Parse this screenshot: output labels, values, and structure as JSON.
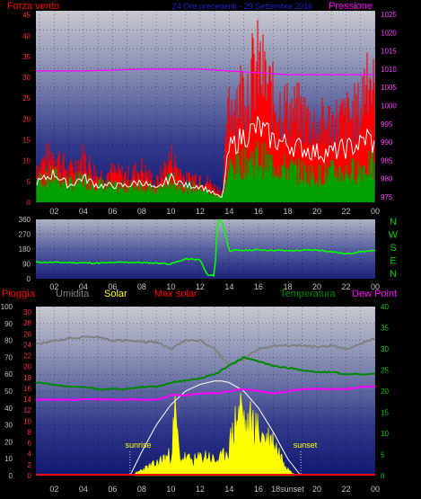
{
  "top_chart": {
    "title": "24 Ore precedenti - 29 Settembre 2016",
    "left_label": "Forza vento",
    "right_label": "Pressione",
    "y_left_ticks": [
      "0",
      "5",
      "10",
      "15",
      "20",
      "25",
      "30",
      "35",
      "40",
      "45"
    ],
    "y_right_ticks": [
      "975",
      "980",
      "985",
      "990",
      "995",
      "1000",
      "1005",
      "1010",
      "1015",
      "1020",
      "1025"
    ],
    "x_ticks": [
      "02",
      "04",
      "06",
      "08",
      "10",
      "12",
      "14",
      "16",
      "18",
      "20",
      "22",
      "00"
    ],
    "colors": {
      "gust": "#ff0000",
      "speed": "#00a000",
      "avg": "#ffffff",
      "pressure": "#ff00ff",
      "left_label": "#ff0000",
      "right_label": "#ff00ff",
      "title": "#2222cc"
    }
  },
  "wind_chart": {
    "y_ticks": [
      "0",
      "90",
      "180",
      "270",
      "360"
    ],
    "x_ticks": [
      "02",
      "04",
      "06",
      "08",
      "10",
      "12",
      "14",
      "16",
      "18",
      "20",
      "22",
      "00"
    ],
    "compass": [
      "N",
      "W",
      "S",
      "E",
      "N"
    ],
    "colors": {
      "direction": "#00ff00",
      "compass": "#00cc00"
    }
  },
  "bottom_chart": {
    "labels": {
      "pioggia": "Pioggia",
      "umidita": "Umidita",
      "solar": "Solar",
      "max_solar": "Max solar",
      "temperatura": "Temperatura",
      "dew_point": "Dew Point"
    },
    "y_hum_ticks": [
      "0",
      "10",
      "20",
      "30",
      "40",
      "50",
      "60",
      "70",
      "80",
      "90",
      "100"
    ],
    "y_rain_ticks": [
      "0",
      "2",
      "4",
      "6",
      "8",
      "10",
      "12",
      "14",
      "16",
      "18",
      "20",
      "22",
      "24",
      "26",
      "28",
      "30"
    ],
    "y_temp_ticks": [
      "0",
      "5",
      "10",
      "15",
      "20",
      "25",
      "30",
      "35",
      "40"
    ],
    "x_ticks": [
      "02",
      "04",
      "06",
      "08",
      "10",
      "12",
      "14",
      "16",
      "18",
      "20",
      "22",
      "00"
    ],
    "annotations": {
      "sunrise": "sunrise",
      "sunset": "sunset",
      "sunset_tick": "18sunset"
    },
    "colors": {
      "rain": "#ff0000",
      "humidity": "#808080",
      "solar": "#ffff00",
      "max_solar": "#ffffff",
      "temperature": "#008800",
      "dew_point": "#ff00ff"
    }
  },
  "chart_data": [
    {
      "type": "line",
      "title": "24 Ore precedenti - 29 Settembre 2016",
      "x_unit": "hour",
      "xlim": [
        0.75,
        24.0
      ],
      "ylabel": "Forza vento",
      "ylim": [
        0,
        46
      ],
      "y2label": "Pressione",
      "y2lim": [
        973.5,
        1026
      ],
      "series": [
        {
          "name": "Forza vento",
          "x": [
            1,
            2,
            3,
            4,
            5,
            6,
            7,
            8,
            9,
            10,
            11,
            12,
            13,
            13.5,
            14,
            15,
            16,
            17,
            18,
            19,
            20,
            21,
            22,
            23,
            23.5,
            24
          ],
          "values": [
            10,
            13,
            8,
            12,
            7,
            8,
            7,
            9,
            5,
            12,
            6,
            7,
            4,
            3,
            25,
            30,
            36,
            27,
            24,
            23,
            20,
            21,
            22,
            24,
            38,
            26
          ]
        },
        {
          "x": [
            1,
            2,
            3,
            4,
            5,
            6,
            7,
            8,
            9,
            10,
            11,
            12,
            13,
            13.5,
            14,
            15,
            16,
            17,
            18,
            19,
            20,
            21,
            22,
            23,
            23.5,
            24
          ],
          "values": [
            6,
            7,
            5,
            6,
            5,
            4,
            4,
            5,
            3,
            6,
            4,
            4,
            2,
            2,
            9,
            11,
            12,
            10,
            9,
            8,
            7,
            8,
            8,
            9,
            10,
            9
          ]
        },
        {
          "x": [
            1,
            2,
            3,
            4,
            5,
            6,
            7,
            8,
            9,
            10,
            11,
            12,
            13,
            13.5,
            14,
            15,
            16,
            17,
            18,
            19,
            20,
            21,
            22,
            23,
            23.5,
            24
          ],
          "values": [
            5,
            7,
            4,
            6,
            4,
            4,
            4,
            5,
            3,
            6,
            4,
            4,
            2,
            1,
            13,
            16,
            18,
            15,
            14,
            13,
            12,
            12,
            13,
            14,
            16,
            13
          ]
        },
        {
          "name": "Pressione",
          "x": [
            1,
            4,
            8,
            10,
            12,
            14,
            16,
            18,
            20,
            22,
            24
          ],
          "values": [
            1009.5,
            1009.5,
            1010,
            1010,
            1010,
            1009.5,
            1009,
            1008.5,
            1008.5,
            1008.5,
            1008.5
          ]
        }
      ]
    },
    {
      "type": "line",
      "x_unit": "hour",
      "xlim": [
        0.75,
        24.0
      ],
      "ylim": [
        0,
        360
      ],
      "series": [
        {
          "x": [
            1,
            3,
            5,
            7,
            9,
            10,
            11,
            12,
            12.5,
            13,
            13.2,
            13.5,
            14,
            16,
            18,
            20,
            21,
            22,
            23,
            24
          ],
          "values": [
            100,
            98,
            95,
            100,
            95,
            90,
            120,
            115,
            20,
            20,
            355,
            355,
            170,
            175,
            170,
            175,
            165,
            150,
            165,
            170
          ]
        }
      ]
    },
    {
      "type": "line",
      "x_unit": "hour",
      "xlim": [
        0.75,
        24.0
      ],
      "y_left_label": "Umidita",
      "y_left_lim": [
        0,
        100
      ],
      "y_rain_label": "Pioggia",
      "y_rain_lim": [
        0,
        30
      ],
      "y_right_label": "Temperatura",
      "y_right_lim": [
        0,
        40
      ],
      "annotations": {
        "sunrise_hour": 7.2,
        "sunset_hour": 18.9
      },
      "series": [
        {
          "name": "Umidita",
          "x": [
            1,
            2,
            3,
            4,
            5,
            6,
            7,
            8,
            9,
            10,
            11,
            12,
            13,
            14,
            15,
            16,
            17,
            18,
            19,
            20,
            21,
            22,
            23,
            24
          ],
          "values": [
            78,
            80,
            81,
            82,
            82,
            80,
            80,
            79,
            79,
            75,
            80,
            80,
            75,
            65,
            69,
            75,
            77,
            77,
            77,
            76,
            77,
            75,
            78,
            81
          ]
        },
        {
          "name": "Temperatura",
          "x": [
            1,
            2,
            3,
            4,
            5,
            6,
            7,
            8,
            9,
            10,
            11,
            12,
            13,
            14,
            15,
            16,
            17,
            18,
            19,
            20,
            21,
            22,
            23,
            24
          ],
          "values": [
            22,
            21.5,
            21,
            21,
            20.5,
            20.5,
            20.5,
            21,
            21,
            22,
            22.5,
            23,
            24,
            26,
            28,
            27,
            26,
            25.5,
            25,
            24.5,
            24.5,
            24,
            24,
            24
          ]
        },
        {
          "name": "Dew Point",
          "x": [
            1,
            2,
            3,
            4,
            5,
            6,
            7,
            8,
            9,
            10,
            11,
            12,
            13,
            14,
            15,
            16,
            17,
            18,
            19,
            20,
            21,
            22,
            23,
            24
          ],
          "values": [
            18,
            18,
            18,
            18,
            18,
            18,
            18,
            18,
            18,
            19,
            19,
            19.5,
            19.5,
            20,
            20.5,
            20,
            19.5,
            20,
            20.5,
            20.5,
            20.5,
            20.5,
            21,
            21
          ]
        },
        {
          "name": "Max solar",
          "x": [
            7.2,
            8,
            9,
            10,
            11,
            12,
            13,
            13.5,
            14,
            15,
            16,
            17,
            18,
            18.9
          ],
          "values": [
            0,
            14,
            30,
            42,
            50,
            54,
            56,
            56,
            55,
            50,
            40,
            26,
            10,
            0
          ]
        },
        {
          "name": "Solar",
          "x": [
            7.5,
            8,
            8.5,
            9,
            9.5,
            10,
            10.3,
            10.6,
            11,
            11.5,
            12,
            12.5,
            13,
            13.5,
            14,
            14.5,
            14.8,
            15.2,
            15.5,
            16,
            16.5,
            17,
            17.5,
            18,
            18.5
          ],
          "values": [
            1,
            4,
            6,
            8,
            12,
            14,
            43,
            12,
            12,
            10,
            12,
            14,
            10,
            12,
            20,
            40,
            48,
            30,
            38,
            30,
            26,
            24,
            14,
            6,
            1
          ]
        },
        {
          "name": "Pioggia",
          "x": [
            1,
            24
          ],
          "values": [
            0,
            0
          ]
        }
      ]
    }
  ]
}
